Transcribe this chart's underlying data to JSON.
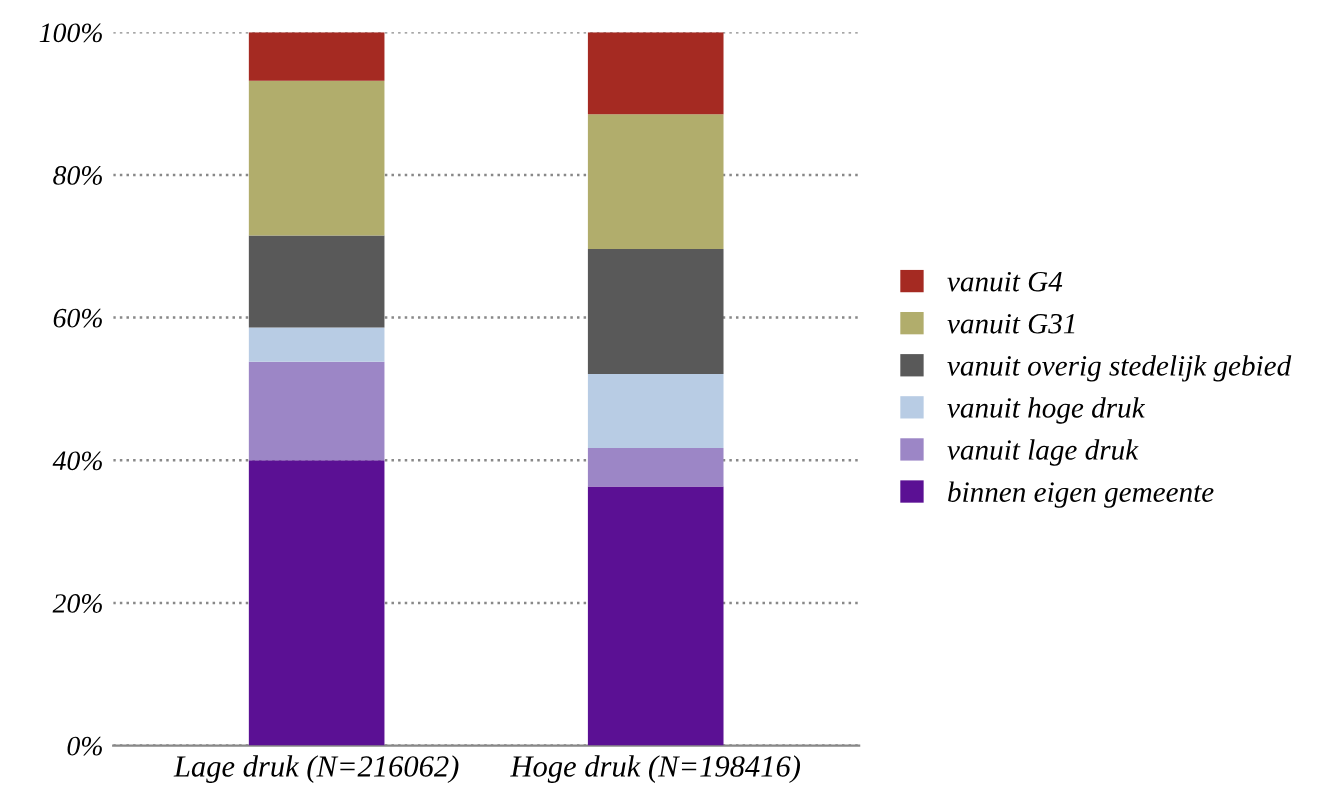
{
  "chart_data": {
    "type": "bar",
    "stacked": true,
    "categories": [
      "Lage druk (N=216062)",
      "Hoge druk (N=198416)"
    ],
    "series": [
      {
        "name": "binnen eigen gemeente",
        "color": "#5b1094",
        "values": [
          40,
          36.3
        ]
      },
      {
        "name": "vanuit lage druk",
        "color": "#9c86c6",
        "values": [
          13.8,
          5.4
        ]
      },
      {
        "name": "vanuit hoge druk",
        "color": "#b8cce4",
        "values": [
          4.8,
          10.4
        ]
      },
      {
        "name": "vanuit overig stedelijk gebied",
        "color": "#595959",
        "values": [
          12.9,
          17.5
        ]
      },
      {
        "name": "vanuit G31",
        "color": "#b1ad6c",
        "values": [
          21.7,
          18.9
        ]
      },
      {
        "name": "vanuit G4",
        "color": "#a52a22",
        "values": [
          6.8,
          11.5
        ]
      }
    ],
    "ylim": [
      0,
      100
    ],
    "yticks": [
      {
        "value": 0,
        "label": "0%"
      },
      {
        "value": 20,
        "label": "20%"
      },
      {
        "value": 40,
        "label": "40%"
      },
      {
        "value": 60,
        "label": "60%"
      },
      {
        "value": 80,
        "label": "80%"
      },
      {
        "value": 100,
        "label": "100%"
      }
    ],
    "grid": "y",
    "legend": "right"
  }
}
